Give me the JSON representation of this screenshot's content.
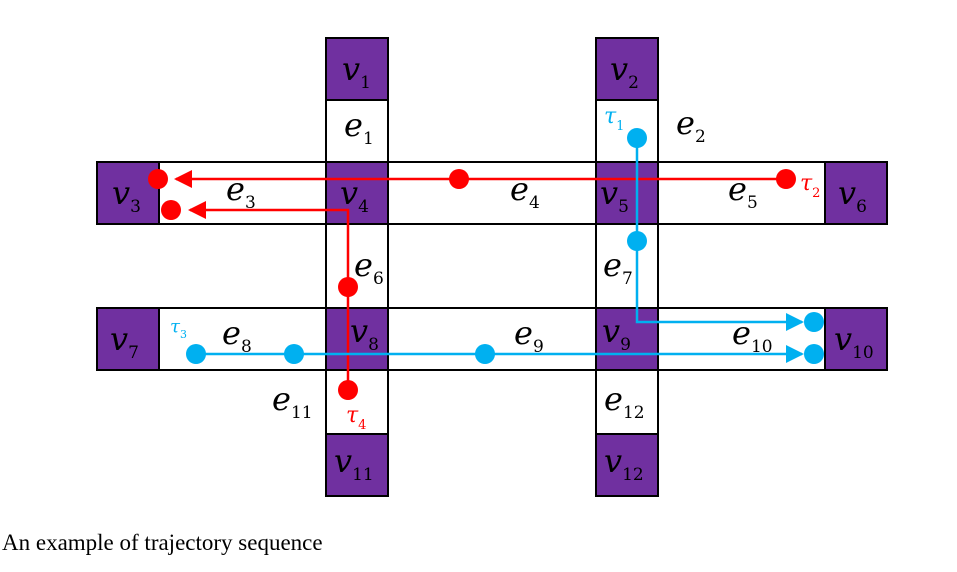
{
  "caption": "An example of trajectory sequence",
  "colors": {
    "vertex_fill": "#7030a0",
    "edge_fill": "#ffffff",
    "outline": "#000000",
    "trajectory_red": "#ff0000",
    "trajectory_blue": "#00b0f0"
  },
  "vertices": [
    {
      "id": "v1",
      "letter": "v",
      "sub": "1"
    },
    {
      "id": "v2",
      "letter": "v",
      "sub": "2"
    },
    {
      "id": "v3",
      "letter": "v",
      "sub": "3"
    },
    {
      "id": "v4",
      "letter": "v",
      "sub": "4"
    },
    {
      "id": "v5",
      "letter": "v",
      "sub": "5"
    },
    {
      "id": "v6",
      "letter": "v",
      "sub": "6"
    },
    {
      "id": "v7",
      "letter": "v",
      "sub": "7"
    },
    {
      "id": "v8",
      "letter": "v",
      "sub": "8"
    },
    {
      "id": "v9",
      "letter": "v",
      "sub": "9"
    },
    {
      "id": "v10",
      "letter": "v",
      "sub": "10"
    },
    {
      "id": "v11",
      "letter": "v",
      "sub": "11"
    },
    {
      "id": "v12",
      "letter": "v",
      "sub": "12"
    }
  ],
  "edges": [
    {
      "id": "e1",
      "letter": "e",
      "sub": "1"
    },
    {
      "id": "e2",
      "letter": "e",
      "sub": "2"
    },
    {
      "id": "e3",
      "letter": "e",
      "sub": "3"
    },
    {
      "id": "e4",
      "letter": "e",
      "sub": "4"
    },
    {
      "id": "e5",
      "letter": "e",
      "sub": "5"
    },
    {
      "id": "e6",
      "letter": "e",
      "sub": "6"
    },
    {
      "id": "e7",
      "letter": "e",
      "sub": "7"
    },
    {
      "id": "e8",
      "letter": "e",
      "sub": "8"
    },
    {
      "id": "e9",
      "letter": "e",
      "sub": "9"
    },
    {
      "id": "e10",
      "letter": "e",
      "sub": "10"
    },
    {
      "id": "e11",
      "letter": "e",
      "sub": "11"
    },
    {
      "id": "e12",
      "letter": "e",
      "sub": "12"
    }
  ],
  "trajectories": [
    {
      "id": "tau1",
      "letter": "τ",
      "sub": "1",
      "color": "blue"
    },
    {
      "id": "tau2",
      "letter": "τ",
      "sub": "2",
      "color": "red"
    },
    {
      "id": "tau3",
      "letter": "τ",
      "sub": "3",
      "color": "blue"
    },
    {
      "id": "tau4",
      "letter": "τ",
      "sub": "4",
      "color": "red"
    }
  ]
}
